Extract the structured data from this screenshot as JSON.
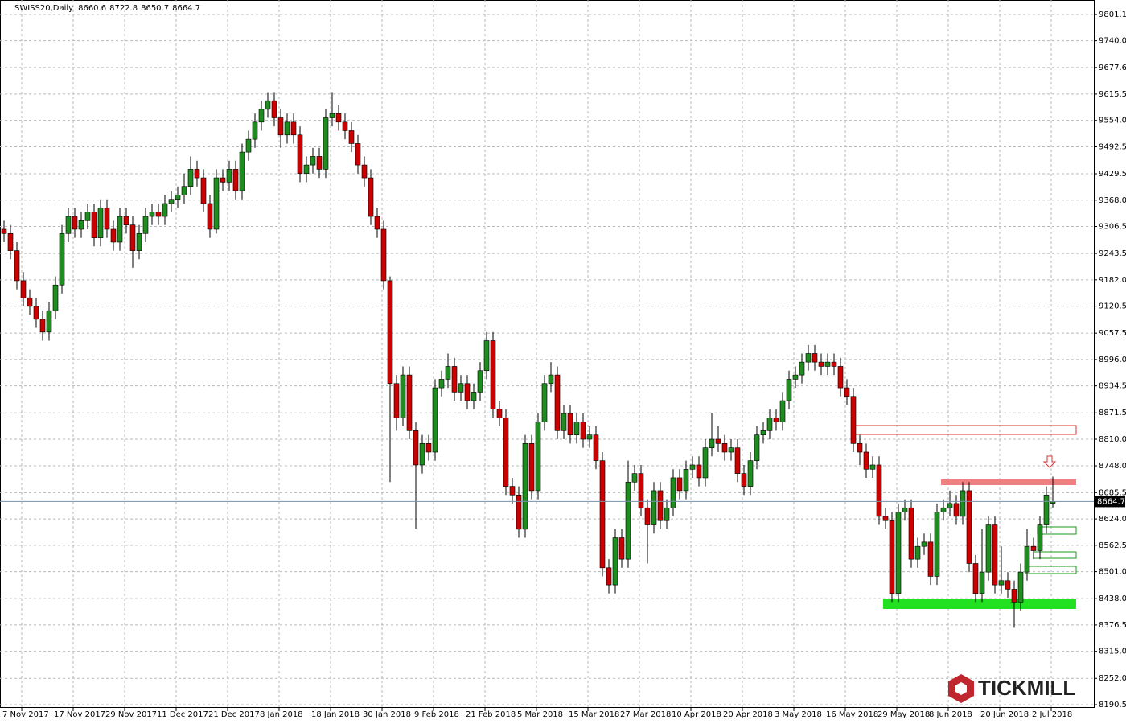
{
  "chart_data": {
    "type": "candlestick",
    "title": "SWISS20,Daily",
    "logo": "TICKMILL",
    "ylim": [
      8183,
      9835
    ],
    "yticks": [
      9801.1,
      {
        "value": 9740,
        "label": "9740.0"
      },
      9677.6,
      9615.5,
      {
        "value": 9554,
        "label": "9554.0"
      },
      9492.5,
      9429.5,
      {
        "value": 9368,
        "label": "9368.0"
      },
      9306.5,
      9243.5,
      {
        "value": 9182,
        "label": "9182.0"
      },
      9120.5,
      9057.5,
      {
        "value": 8996,
        "label": "8996.0"
      },
      8934.5,
      8871.5,
      {
        "value": 8810,
        "label": "8810.0"
      },
      {
        "value": 8748,
        "label": "8748.0"
      },
      8685.5,
      {
        "value": 8624,
        "label": "8624.0"
      },
      8562.5,
      {
        "value": 8501,
        "label": "8501.0"
      },
      {
        "value": 8438,
        "label": "8438.0"
      },
      8376.5,
      {
        "value": 8315,
        "label": "8315.0"
      },
      {
        "value": 8252,
        "label": "8252.0"
      },
      8190.5
    ],
    "grid": true,
    "up_color": "#1e8c1e",
    "down_color": "#cc0000",
    "categories": [
      "7 Nov 2017",
      null,
      null,
      null,
      null,
      null,
      null,
      null,
      "17 Nov 2017",
      null,
      null,
      null,
      null,
      null,
      null,
      null,
      "29 Nov 2017",
      null,
      null,
      null,
      null,
      null,
      null,
      null,
      "11 Dec 2017",
      null,
      null,
      null,
      null,
      null,
      null,
      null,
      "21 Dec 2017",
      null,
      null,
      null,
      null,
      null,
      null,
      null,
      "8 Jan 2018",
      null,
      null,
      null,
      null,
      null,
      null,
      null,
      "18 Jan 2018",
      null,
      null,
      null,
      null,
      null,
      null,
      null,
      "30 Jan 2018",
      null,
      null,
      null,
      null,
      null,
      null,
      null,
      "9 Feb 2018",
      null,
      null,
      null,
      null,
      null,
      null,
      null,
      "21 Feb 2018",
      null,
      null,
      null,
      null,
      null,
      null,
      null,
      "5 Mar 2018",
      null,
      null,
      null,
      null,
      null,
      null,
      null,
      "15 Mar 2018",
      null,
      null,
      null,
      null,
      null,
      null,
      null,
      "27 Mar 2018",
      null,
      null,
      null,
      null,
      null,
      null,
      null,
      "10 Apr 2018",
      null,
      null,
      null,
      null,
      null,
      null,
      null,
      "20 Apr 2018",
      null,
      null,
      null,
      null,
      null,
      null,
      null,
      "3 May 2018",
      null,
      null,
      null,
      null,
      null,
      null,
      null,
      "16 May 2018",
      null,
      null,
      null,
      null,
      null,
      null,
      null,
      "29 May 2018",
      null,
      null,
      null,
      null,
      null,
      null,
      null,
      "8 Jun 2018",
      null,
      null,
      null,
      null,
      null,
      null,
      null,
      "20 Jun 2018",
      null,
      null,
      null,
      null,
      null,
      null,
      null,
      "2 Jul 2018",
      null,
      null,
      null
    ],
    "open": [
      9300,
      9290,
      9250,
      9180,
      9140,
      9120,
      9090,
      9060,
      9110,
      9170,
      9290,
      9330,
      9300,
      9320,
      9340,
      9280,
      9350,
      9300,
      9270,
      9330,
      9310,
      9250,
      9290,
      9330,
      9340,
      9330,
      9360,
      9370,
      9380,
      9400,
      9440,
      9420,
      9360,
      9300,
      9420,
      9410,
      9440,
      9390,
      9480,
      9510,
      9550,
      9580,
      9600,
      9560,
      9520,
      9550,
      9520,
      9430,
      9450,
      9470,
      9440,
      9560,
      9570,
      9550,
      9530,
      9500,
      9450,
      9420,
      9330,
      9300,
      9180,
      8940,
      8860,
      8960,
      8830,
      8750,
      8800,
      8780,
      8930,
      8950,
      8980,
      8920,
      8940,
      8900,
      8920,
      8970,
      9040,
      8880,
      8860,
      8700,
      8680,
      8600,
      8800,
      8690,
      8850,
      8940,
      8960,
      8830,
      8870,
      8820,
      8850,
      8810,
      8820,
      8760,
      8510,
      8470,
      8580,
      8530,
      8710,
      8730,
      8650,
      8610,
      8690,
      8620,
      8650,
      8720,
      8690,
      8740,
      8750,
      8720,
      8790,
      8810,
      8800,
      8780,
      8790,
      8730,
      8700,
      8760,
      8820,
      8830,
      8860,
      8850,
      8900,
      8950,
      8960,
      8990,
      9010,
      8990,
      8980,
      8990,
      8980,
      8930,
      8910,
      8800,
      8780,
      8740,
      8750,
      8630,
      8620,
      8450,
      8640,
      8650,
      8530,
      8560,
      8570,
      8490,
      8640,
      8650,
      8660,
      8630,
      8690,
      8520,
      8450,
      8500,
      8610,
      8470,
      8480,
      8460,
      8430,
      8500,
      8560,
      8550,
      8610,
      8660.6
    ],
    "high": [
      9320,
      9310,
      9270,
      9200,
      9160,
      9140,
      9110,
      9130,
      9190,
      9310,
      9350,
      9350,
      9340,
      9360,
      9360,
      9370,
      9370,
      9320,
      9350,
      9350,
      9330,
      9310,
      9350,
      9360,
      9360,
      9380,
      9390,
      9400,
      9430,
      9470,
      9460,
      9440,
      9380,
      9440,
      9440,
      9460,
      9460,
      9500,
      9530,
      9570,
      9600,
      9620,
      9620,
      9580,
      9570,
      9570,
      9540,
      9470,
      9490,
      9490,
      9580,
      9620,
      9590,
      9570,
      9550,
      9520,
      9470,
      9440,
      9350,
      9320,
      9190,
      8960,
      8980,
      8980,
      8850,
      8820,
      8820,
      8950,
      8970,
      9010,
      9000,
      8960,
      8960,
      8940,
      8990,
      9060,
      9060,
      8900,
      8880,
      8720,
      8700,
      8820,
      8820,
      8870,
      8960,
      8990,
      8980,
      8890,
      8890,
      8870,
      8870,
      8840,
      8840,
      8780,
      8530,
      8600,
      8600,
      8760,
      8750,
      8750,
      8670,
      8710,
      8710,
      8670,
      8740,
      8740,
      8760,
      8770,
      8770,
      8810,
      8870,
      8840,
      8820,
      8810,
      8810,
      8750,
      8780,
      8840,
      8850,
      8880,
      8880,
      8920,
      8970,
      8980,
      9010,
      9030,
      9030,
      9010,
      9010,
      9010,
      9000,
      8950,
      8930,
      8820,
      8800,
      8770,
      8770,
      8650,
      8640,
      8660,
      8670,
      8670,
      8580,
      8590,
      8590,
      8660,
      8670,
      8690,
      8680,
      8710,
      8710,
      8540,
      8600,
      8630,
      8630,
      8560,
      8500,
      8480,
      8520,
      8600,
      8580,
      8630,
      8700,
      8722.8
    ],
    "low": [
      9270,
      9230,
      9160,
      9120,
      9100,
      9070,
      9040,
      9040,
      9090,
      9150,
      9270,
      9280,
      9280,
      9300,
      9260,
      9260,
      9280,
      9250,
      9250,
      9290,
      9210,
      9230,
      9270,
      9310,
      9310,
      9310,
      9340,
      9350,
      9360,
      9380,
      9400,
      9340,
      9280,
      9290,
      9390,
      9390,
      9370,
      9370,
      9460,
      9490,
      9530,
      9560,
      9540,
      9490,
      9500,
      9500,
      9410,
      9410,
      9430,
      9420,
      9420,
      9540,
      9530,
      9510,
      9480,
      9430,
      9400,
      9310,
      9280,
      9160,
      8710,
      8830,
      8840,
      8810,
      8600,
      8730,
      8760,
      8760,
      8910,
      8930,
      8900,
      8900,
      8880,
      8880,
      8900,
      8950,
      8860,
      8840,
      8680,
      8660,
      8580,
      8580,
      8670,
      8670,
      8830,
      8920,
      8810,
      8810,
      8800,
      8800,
      8790,
      8790,
      8740,
      8490,
      8450,
      8450,
      8510,
      8510,
      8690,
      8630,
      8520,
      8590,
      8600,
      8600,
      8630,
      8670,
      8670,
      8720,
      8700,
      8700,
      8770,
      8780,
      8760,
      8760,
      8710,
      8680,
      8680,
      8740,
      8800,
      8810,
      8830,
      8830,
      8880,
      8930,
      8940,
      8970,
      8970,
      8960,
      8960,
      8960,
      8910,
      8890,
      8780,
      8750,
      8720,
      8720,
      8610,
      8600,
      8430,
      8430,
      8620,
      8510,
      8510,
      8540,
      8470,
      8470,
      8620,
      8630,
      8610,
      8610,
      8500,
      8430,
      8430,
      8480,
      8450,
      8450,
      8440,
      8370,
      8410,
      8480,
      8530,
      8530,
      8590,
      8650.7
    ],
    "close": [
      9290,
      9250,
      9180,
      9140,
      9120,
      9090,
      9060,
      9110,
      9170,
      9290,
      9330,
      9300,
      9320,
      9340,
      9280,
      9350,
      9300,
      9270,
      9330,
      9310,
      9250,
      9290,
      9330,
      9340,
      9330,
      9360,
      9370,
      9380,
      9400,
      9440,
      9420,
      9360,
      9300,
      9420,
      9410,
      9440,
      9390,
      9480,
      9510,
      9550,
      9580,
      9600,
      9560,
      9520,
      9550,
      9520,
      9430,
      9450,
      9470,
      9440,
      9560,
      9570,
      9550,
      9530,
      9500,
      9450,
      9420,
      9330,
      9300,
      9180,
      8940,
      8860,
      8960,
      8830,
      8750,
      8800,
      8780,
      8930,
      8950,
      8980,
      8920,
      8940,
      8900,
      8920,
      8970,
      9040,
      8880,
      8860,
      8700,
      8680,
      8600,
      8800,
      8690,
      8850,
      8940,
      8960,
      8830,
      8870,
      8820,
      8850,
      8810,
      8820,
      8760,
      8510,
      8470,
      8580,
      8530,
      8710,
      8730,
      8650,
      8610,
      8690,
      8620,
      8650,
      8720,
      8690,
      8740,
      8750,
      8720,
      8790,
      8810,
      8800,
      8780,
      8790,
      8730,
      8700,
      8760,
      8820,
      8830,
      8860,
      8850,
      8900,
      8950,
      8960,
      8990,
      9010,
      8990,
      8980,
      8990,
      8980,
      8930,
      8910,
      8800,
      8780,
      8740,
      8750,
      8630,
      8620,
      8450,
      8640,
      8650,
      8530,
      8560,
      8570,
      8490,
      8640,
      8650,
      8660,
      8630,
      8690,
      8520,
      8450,
      8500,
      8610,
      8470,
      8480,
      8460,
      8430,
      8500,
      8560,
      8550,
      8610,
      8680,
      8664.7
    ]
  }
}
